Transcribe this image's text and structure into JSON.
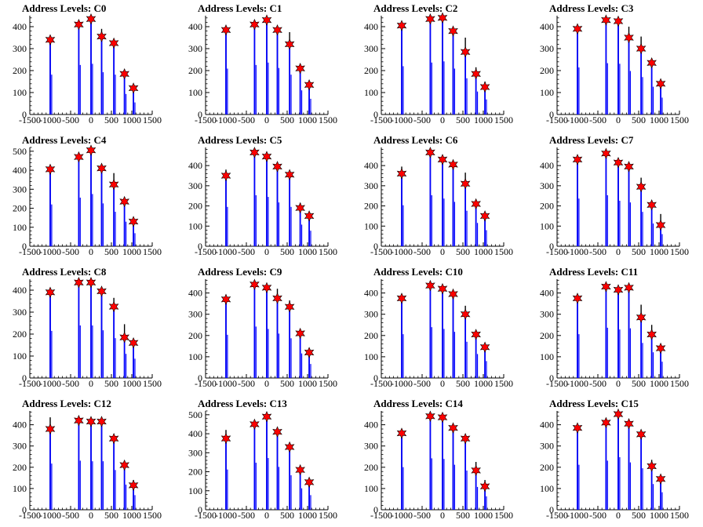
{
  "figure": {
    "colors": {
      "bar_black": "#000000",
      "bar_blue": "#0000ff",
      "star_fill": "#ff0000",
      "star_stroke": "#000000",
      "axis": "#000000"
    }
  },
  "chart_data": [
    {
      "type": "bar",
      "title": "Address Levels: C0",
      "xlim": [
        -1500,
        1500
      ],
      "ylim": [
        0,
        450
      ],
      "xticks": [
        "-1500",
        "-1000",
        "-500",
        "0",
        "500",
        "1000",
        "1500"
      ],
      "yticks": [
        "0",
        "100",
        "200",
        "300",
        "400"
      ],
      "peaks": [
        {
          "x": -1000,
          "total": 345,
          "blue": 330,
          "star": 340
        },
        {
          "x": -300,
          "total": 420,
          "blue": 410,
          "star": 410
        },
        {
          "x": 0,
          "total": 450,
          "blue": 420,
          "star": 435
        },
        {
          "x": 260,
          "total": 390,
          "blue": 350,
          "star": 355
        },
        {
          "x": 560,
          "total": 340,
          "blue": 330,
          "star": 325
        },
        {
          "x": 820,
          "total": 200,
          "blue": 170,
          "star": 185
        },
        {
          "x": 1040,
          "total": 130,
          "blue": 100,
          "star": 120
        }
      ]
    },
    {
      "type": "bar",
      "title": "Address Levels: C1",
      "xlim": [
        -1500,
        1500
      ],
      "ylim": [
        0,
        450
      ],
      "xticks": [
        "-1500",
        "-1000",
        "-500",
        "0",
        "500",
        "1000",
        "1500"
      ],
      "yticks": [
        "0",
        "100",
        "200",
        "300",
        "400"
      ],
      "peaks": [
        {
          "x": -1000,
          "total": 395,
          "blue": 380,
          "star": 385
        },
        {
          "x": -300,
          "total": 430,
          "blue": 410,
          "star": 410
        },
        {
          "x": 0,
          "total": 445,
          "blue": 430,
          "star": 430
        },
        {
          "x": 260,
          "total": 395,
          "blue": 385,
          "star": 385
        },
        {
          "x": 560,
          "total": 375,
          "blue": 330,
          "star": 320
        },
        {
          "x": 820,
          "total": 215,
          "blue": 200,
          "star": 210
        },
        {
          "x": 1040,
          "total": 145,
          "blue": 130,
          "star": 135
        }
      ]
    },
    {
      "type": "bar",
      "title": "Address Levels: C2",
      "xlim": [
        -1500,
        1500
      ],
      "ylim": [
        0,
        450
      ],
      "xticks": [
        "-1500",
        "-1000",
        "-500",
        "0",
        "500",
        "1000",
        "1500"
      ],
      "yticks": [
        "0",
        "100",
        "200",
        "300",
        "400"
      ],
      "peaks": [
        {
          "x": -1000,
          "total": 415,
          "blue": 400,
          "star": 405
        },
        {
          "x": -300,
          "total": 445,
          "blue": 430,
          "star": 435
        },
        {
          "x": 0,
          "total": 450,
          "blue": 440,
          "star": 440
        },
        {
          "x": 260,
          "total": 395,
          "blue": 380,
          "star": 380
        },
        {
          "x": 560,
          "total": 350,
          "blue": 300,
          "star": 285
        },
        {
          "x": 820,
          "total": 215,
          "blue": 190,
          "star": 185
        },
        {
          "x": 1040,
          "total": 150,
          "blue": 125,
          "star": 125
        }
      ]
    },
    {
      "type": "bar",
      "title": "Address Levels: C3",
      "xlim": [
        -1500,
        1500
      ],
      "ylim": [
        0,
        450
      ],
      "xticks": [
        "-1500",
        "-1000",
        "-500",
        "0",
        "500",
        "1000",
        "1500"
      ],
      "yticks": [
        "0",
        "100",
        "200",
        "300",
        "400"
      ],
      "peaks": [
        {
          "x": -1000,
          "total": 400,
          "blue": 390,
          "star": 390
        },
        {
          "x": -300,
          "total": 440,
          "blue": 425,
          "star": 430
        },
        {
          "x": 0,
          "total": 440,
          "blue": 420,
          "star": 425
        },
        {
          "x": 260,
          "total": 400,
          "blue": 360,
          "star": 350
        },
        {
          "x": 560,
          "total": 355,
          "blue": 310,
          "star": 300
        },
        {
          "x": 820,
          "total": 245,
          "blue": 230,
          "star": 235
        },
        {
          "x": 1040,
          "total": 155,
          "blue": 140,
          "star": 140
        }
      ]
    },
    {
      "type": "bar",
      "title": "Address Levels: C4",
      "xlim": [
        -1500,
        1500
      ],
      "ylim": [
        0,
        520
      ],
      "xticks": [
        "-1500",
        "-1000",
        "-500",
        "0",
        "500",
        "1000",
        "1500"
      ],
      "yticks": [
        "0",
        "100",
        "200",
        "300",
        "400",
        "500"
      ],
      "peaks": [
        {
          "x": -1000,
          "total": 415,
          "blue": 400,
          "star": 405
        },
        {
          "x": -300,
          "total": 480,
          "blue": 465,
          "star": 470
        },
        {
          "x": 0,
          "total": 510,
          "blue": 500,
          "star": 505
        },
        {
          "x": 260,
          "total": 420,
          "blue": 410,
          "star": 410
        },
        {
          "x": 560,
          "total": 385,
          "blue": 330,
          "star": 325
        },
        {
          "x": 820,
          "total": 250,
          "blue": 235,
          "star": 235
        },
        {
          "x": 1040,
          "total": 145,
          "blue": 125,
          "star": 130
        }
      ]
    },
    {
      "type": "bar",
      "title": "Address Levels: C5",
      "xlim": [
        -1500,
        1500
      ],
      "ylim": [
        0,
        490
      ],
      "xticks": [
        "-1500",
        "-1000",
        "-500",
        "0",
        "500",
        "1000",
        "1500"
      ],
      "yticks": [
        "0",
        "100",
        "200",
        "300",
        "400"
      ],
      "peaks": [
        {
          "x": -1000,
          "total": 380,
          "blue": 355,
          "star": 350
        },
        {
          "x": -300,
          "total": 470,
          "blue": 460,
          "star": 465
        },
        {
          "x": 0,
          "total": 455,
          "blue": 445,
          "star": 445
        },
        {
          "x": 260,
          "total": 405,
          "blue": 395,
          "star": 395
        },
        {
          "x": 560,
          "total": 370,
          "blue": 355,
          "star": 355
        },
        {
          "x": 820,
          "total": 215,
          "blue": 195,
          "star": 190
        },
        {
          "x": 1040,
          "total": 160,
          "blue": 140,
          "star": 150
        }
      ]
    },
    {
      "type": "bar",
      "title": "Address Levels: C6",
      "xlim": [
        -1500,
        1500
      ],
      "ylim": [
        0,
        490
      ],
      "xticks": [
        "-1500",
        "-1000",
        "-500",
        "0",
        "500",
        "1000",
        "1500"
      ],
      "yticks": [
        "0",
        "100",
        "200",
        "300",
        "400"
      ],
      "peaks": [
        {
          "x": -1000,
          "total": 395,
          "blue": 370,
          "star": 360
        },
        {
          "x": -300,
          "total": 470,
          "blue": 460,
          "star": 465
        },
        {
          "x": 0,
          "total": 445,
          "blue": 430,
          "star": 430
        },
        {
          "x": 260,
          "total": 415,
          "blue": 400,
          "star": 405
        },
        {
          "x": 560,
          "total": 365,
          "blue": 320,
          "star": 310
        },
        {
          "x": 820,
          "total": 225,
          "blue": 210,
          "star": 210
        },
        {
          "x": 1040,
          "total": 160,
          "blue": 145,
          "star": 150
        }
      ]
    },
    {
      "type": "bar",
      "title": "Address Levels: C7",
      "xlim": [
        -1500,
        1500
      ],
      "ylim": [
        0,
        490
      ],
      "xticks": [
        "-1500",
        "-1000",
        "-500",
        "0",
        "500",
        "1000",
        "1500"
      ],
      "yticks": [
        "0",
        "100",
        "200",
        "300",
        "400"
      ],
      "peaks": [
        {
          "x": -1000,
          "total": 440,
          "blue": 430,
          "star": 430
        },
        {
          "x": -300,
          "total": 470,
          "blue": 460,
          "star": 460
        },
        {
          "x": 0,
          "total": 420,
          "blue": 410,
          "star": 415
        },
        {
          "x": 260,
          "total": 405,
          "blue": 395,
          "star": 395
        },
        {
          "x": 560,
          "total": 340,
          "blue": 310,
          "star": 295
        },
        {
          "x": 820,
          "total": 220,
          "blue": 205,
          "star": 205
        },
        {
          "x": 1040,
          "total": 160,
          "blue": 110,
          "star": 105
        }
      ]
    },
    {
      "type": "bar",
      "title": "Address Levels: C8",
      "xlim": [
        -1500,
        1500
      ],
      "ylim": [
        0,
        450
      ],
      "xticks": [
        "-1500",
        "-1000",
        "-500",
        "0",
        "500",
        "1000",
        "1500"
      ],
      "yticks": [
        "0",
        "100",
        "200",
        "300",
        "400"
      ],
      "peaks": [
        {
          "x": -1000,
          "total": 400,
          "blue": 390,
          "star": 390
        },
        {
          "x": -300,
          "total": 445,
          "blue": 435,
          "star": 435
        },
        {
          "x": 0,
          "total": 445,
          "blue": 435,
          "star": 435
        },
        {
          "x": 260,
          "total": 405,
          "blue": 395,
          "star": 395
        },
        {
          "x": 560,
          "total": 365,
          "blue": 330,
          "star": 325
        },
        {
          "x": 820,
          "total": 245,
          "blue": 200,
          "star": 185
        },
        {
          "x": 1040,
          "total": 170,
          "blue": 160,
          "star": 160
        }
      ]
    },
    {
      "type": "bar",
      "title": "Address Levels: C9",
      "xlim": [
        -1500,
        1500
      ],
      "ylim": [
        0,
        465
      ],
      "xticks": [
        "-1500",
        "-1000",
        "-500",
        "0",
        "500",
        "1000",
        "1500"
      ],
      "yticks": [
        "0",
        "100",
        "200",
        "300",
        "400"
      ],
      "peaks": [
        {
          "x": -1000,
          "total": 380,
          "blue": 370,
          "star": 370
        },
        {
          "x": -300,
          "total": 450,
          "blue": 440,
          "star": 440
        },
        {
          "x": 0,
          "total": 430,
          "blue": 420,
          "star": 425
        },
        {
          "x": 260,
          "total": 420,
          "blue": 380,
          "star": 375
        },
        {
          "x": 560,
          "total": 365,
          "blue": 340,
          "star": 335
        },
        {
          "x": 820,
          "total": 220,
          "blue": 210,
          "star": 210
        },
        {
          "x": 1040,
          "total": 140,
          "blue": 120,
          "star": 120
        }
      ]
    },
    {
      "type": "bar",
      "title": "Address Levels: C10",
      "xlim": [
        -1500,
        1500
      ],
      "ylim": [
        0,
        465
      ],
      "xticks": [
        "-1500",
        "-1000",
        "-500",
        "0",
        "500",
        "1000",
        "1500"
      ],
      "yticks": [
        "0",
        "100",
        "200",
        "300",
        "400"
      ],
      "peaks": [
        {
          "x": -1000,
          "total": 385,
          "blue": 375,
          "star": 375
        },
        {
          "x": -300,
          "total": 445,
          "blue": 435,
          "star": 435
        },
        {
          "x": 0,
          "total": 430,
          "blue": 420,
          "star": 420
        },
        {
          "x": 260,
          "total": 405,
          "blue": 395,
          "star": 395
        },
        {
          "x": 560,
          "total": 340,
          "blue": 310,
          "star": 300
        },
        {
          "x": 820,
          "total": 215,
          "blue": 205,
          "star": 205
        },
        {
          "x": 1040,
          "total": 160,
          "blue": 145,
          "star": 145
        }
      ]
    },
    {
      "type": "bar",
      "title": "Address Levels: C11",
      "xlim": [
        -1500,
        1500
      ],
      "ylim": [
        0,
        465
      ],
      "xticks": [
        "-1500",
        "-1000",
        "-500",
        "0",
        "500",
        "1000",
        "1500"
      ],
      "yticks": [
        "0",
        "100",
        "200",
        "300",
        "400"
      ],
      "peaks": [
        {
          "x": -1000,
          "total": 385,
          "blue": 375,
          "star": 375
        },
        {
          "x": -300,
          "total": 440,
          "blue": 430,
          "star": 430
        },
        {
          "x": 0,
          "total": 425,
          "blue": 415,
          "star": 415
        },
        {
          "x": 260,
          "total": 435,
          "blue": 425,
          "star": 425
        },
        {
          "x": 560,
          "total": 345,
          "blue": 300,
          "star": 285
        },
        {
          "x": 820,
          "total": 250,
          "blue": 220,
          "star": 205
        },
        {
          "x": 1040,
          "total": 150,
          "blue": 140,
          "star": 140
        }
      ]
    },
    {
      "type": "bar",
      "title": "Address Levels: C12",
      "xlim": [
        -1500,
        1500
      ],
      "ylim": [
        0,
        465
      ],
      "xticks": [
        "-1500",
        "-1000",
        "-500",
        "0",
        "500",
        "1000",
        "1500"
      ],
      "yticks": [
        "0",
        "100",
        "200",
        "300",
        "400"
      ],
      "peaks": [
        {
          "x": -1000,
          "total": 435,
          "blue": 395,
          "star": 380
        },
        {
          "x": -300,
          "total": 430,
          "blue": 420,
          "star": 420
        },
        {
          "x": 0,
          "total": 425,
          "blue": 415,
          "star": 415
        },
        {
          "x": 260,
          "total": 425,
          "blue": 415,
          "star": 415
        },
        {
          "x": 560,
          "total": 355,
          "blue": 340,
          "star": 335
        },
        {
          "x": 820,
          "total": 230,
          "blue": 215,
          "star": 210
        },
        {
          "x": 1040,
          "total": 140,
          "blue": 125,
          "star": 115
        }
      ]
    },
    {
      "type": "bar",
      "title": "Address Levels: C13",
      "xlim": [
        -1500,
        1500
      ],
      "ylim": [
        0,
        520
      ],
      "xticks": [
        "-1500",
        "-1000",
        "-500",
        "0",
        "500",
        "1000",
        "1500"
      ],
      "yticks": [
        "0",
        "100",
        "200",
        "300",
        "400",
        "500"
      ],
      "peaks": [
        {
          "x": -1000,
          "total": 420,
          "blue": 385,
          "star": 375
        },
        {
          "x": -300,
          "total": 460,
          "blue": 450,
          "star": 450
        },
        {
          "x": 0,
          "total": 505,
          "blue": 495,
          "star": 490
        },
        {
          "x": 260,
          "total": 420,
          "blue": 410,
          "star": 410
        },
        {
          "x": 560,
          "total": 340,
          "blue": 330,
          "star": 330
        },
        {
          "x": 820,
          "total": 215,
          "blue": 205,
          "star": 210
        },
        {
          "x": 1040,
          "total": 155,
          "blue": 140,
          "star": 145
        }
      ]
    },
    {
      "type": "bar",
      "title": "Address Levels: C14",
      "xlim": [
        -1500,
        1500
      ],
      "ylim": [
        0,
        465
      ],
      "xticks": [
        "-1500",
        "-1000",
        "-500",
        "0",
        "500",
        "1000",
        "1500"
      ],
      "yticks": [
        "0",
        "100",
        "200",
        "300",
        "400"
      ],
      "peaks": [
        {
          "x": -1000,
          "total": 380,
          "blue": 365,
          "star": 360
        },
        {
          "x": -300,
          "total": 450,
          "blue": 440,
          "star": 440
        },
        {
          "x": 0,
          "total": 445,
          "blue": 435,
          "star": 435
        },
        {
          "x": 260,
          "total": 395,
          "blue": 385,
          "star": 385
        },
        {
          "x": 560,
          "total": 345,
          "blue": 335,
          "star": 335
        },
        {
          "x": 820,
          "total": 225,
          "blue": 195,
          "star": 185
        },
        {
          "x": 1040,
          "total": 140,
          "blue": 115,
          "star": 110
        }
      ]
    },
    {
      "type": "bar",
      "title": "Address Levels: C15",
      "xlim": [
        -1500,
        1500
      ],
      "ylim": [
        0,
        465
      ],
      "xticks": [
        "-1500",
        "-1000",
        "-500",
        "0",
        "500",
        "1000",
        "1500"
      ],
      "yticks": [
        "0",
        "100",
        "200",
        "300",
        "400"
      ],
      "peaks": [
        {
          "x": -1000,
          "total": 395,
          "blue": 385,
          "star": 385
        },
        {
          "x": -300,
          "total": 430,
          "blue": 420,
          "star": 410
        },
        {
          "x": 0,
          "total": 460,
          "blue": 450,
          "star": 450
        },
        {
          "x": 260,
          "total": 415,
          "blue": 405,
          "star": 405
        },
        {
          "x": 560,
          "total": 365,
          "blue": 355,
          "star": 355
        },
        {
          "x": 820,
          "total": 235,
          "blue": 220,
          "star": 205
        },
        {
          "x": 1040,
          "total": 160,
          "blue": 150,
          "star": 145
        }
      ]
    }
  ]
}
